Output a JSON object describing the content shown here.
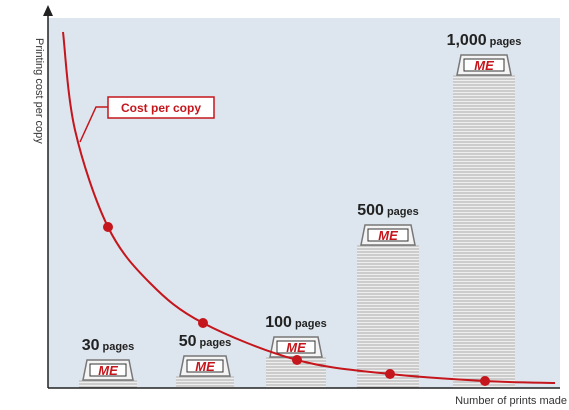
{
  "axes": {
    "y_label": "Printing cost per copy",
    "x_label": "Number of prints made"
  },
  "curve_label": "Cost per copy",
  "stacks": [
    {
      "count": "30",
      "unit": "pages",
      "logo": "ME"
    },
    {
      "count": "50",
      "unit": "pages",
      "logo": "ME"
    },
    {
      "count": "100",
      "unit": "pages",
      "logo": "ME"
    },
    {
      "count": "500",
      "unit": "pages",
      "logo": "ME"
    },
    {
      "count": "1,000",
      "unit": "pages",
      "logo": "ME"
    }
  ]
}
